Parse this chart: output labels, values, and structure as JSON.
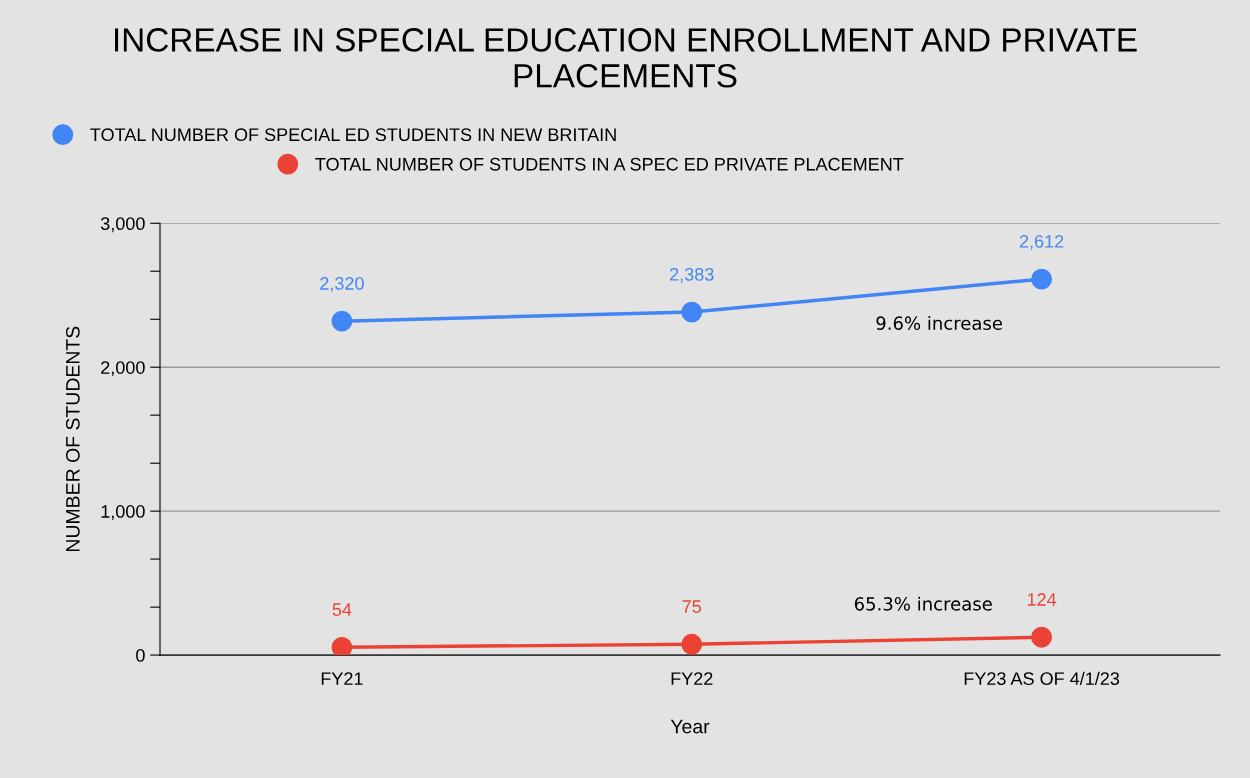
{
  "chart_data": {
    "type": "line",
    "title": "INCREASE IN SPECIAL EDUCATION ENROLLMENT AND PRIVATE PLACEMENTS",
    "xlabel": "Year",
    "ylabel": "NUMBER OF STUDENTS",
    "categories": [
      "FY21",
      "FY22",
      "FY23 AS OF 4/1/23"
    ],
    "series": [
      {
        "name": "TOTAL NUMBER OF SPECIAL ED STUDENTS IN NEW BRITAIN",
        "color": "#4285f4",
        "values": [
          2320,
          2383,
          2612
        ],
        "value_labels": [
          "2,320",
          "2,383",
          "2,612"
        ]
      },
      {
        "name": "TOTAL NUMBER OF STUDENTS IN A SPEC ED PRIVATE PLACEMENT",
        "color": "#ea4335",
        "values": [
          54,
          75,
          124
        ],
        "value_labels": [
          "54",
          "75",
          "124"
        ]
      }
    ],
    "ylim": [
      0,
      3000
    ],
    "yticks": [
      0,
      {
        "value": 333,
        "label": null
      },
      {
        "value": 667,
        "label": null
      },
      {
        "value": 1000,
        "label": "1,000"
      },
      {
        "value": 1333,
        "label": null
      },
      {
        "value": 1667,
        "label": null
      },
      {
        "value": 2000,
        "label": "2,000"
      },
      {
        "value": 2333,
        "label": null
      },
      {
        "value": 2667,
        "label": null
      },
      {
        "value": 3000,
        "label": "3,000"
      }
    ],
    "grid": "y",
    "legend": "top left",
    "marker": "circle",
    "line_style": "solid",
    "annotations": [
      "9.6% increase",
      "65.3% increase"
    ]
  }
}
